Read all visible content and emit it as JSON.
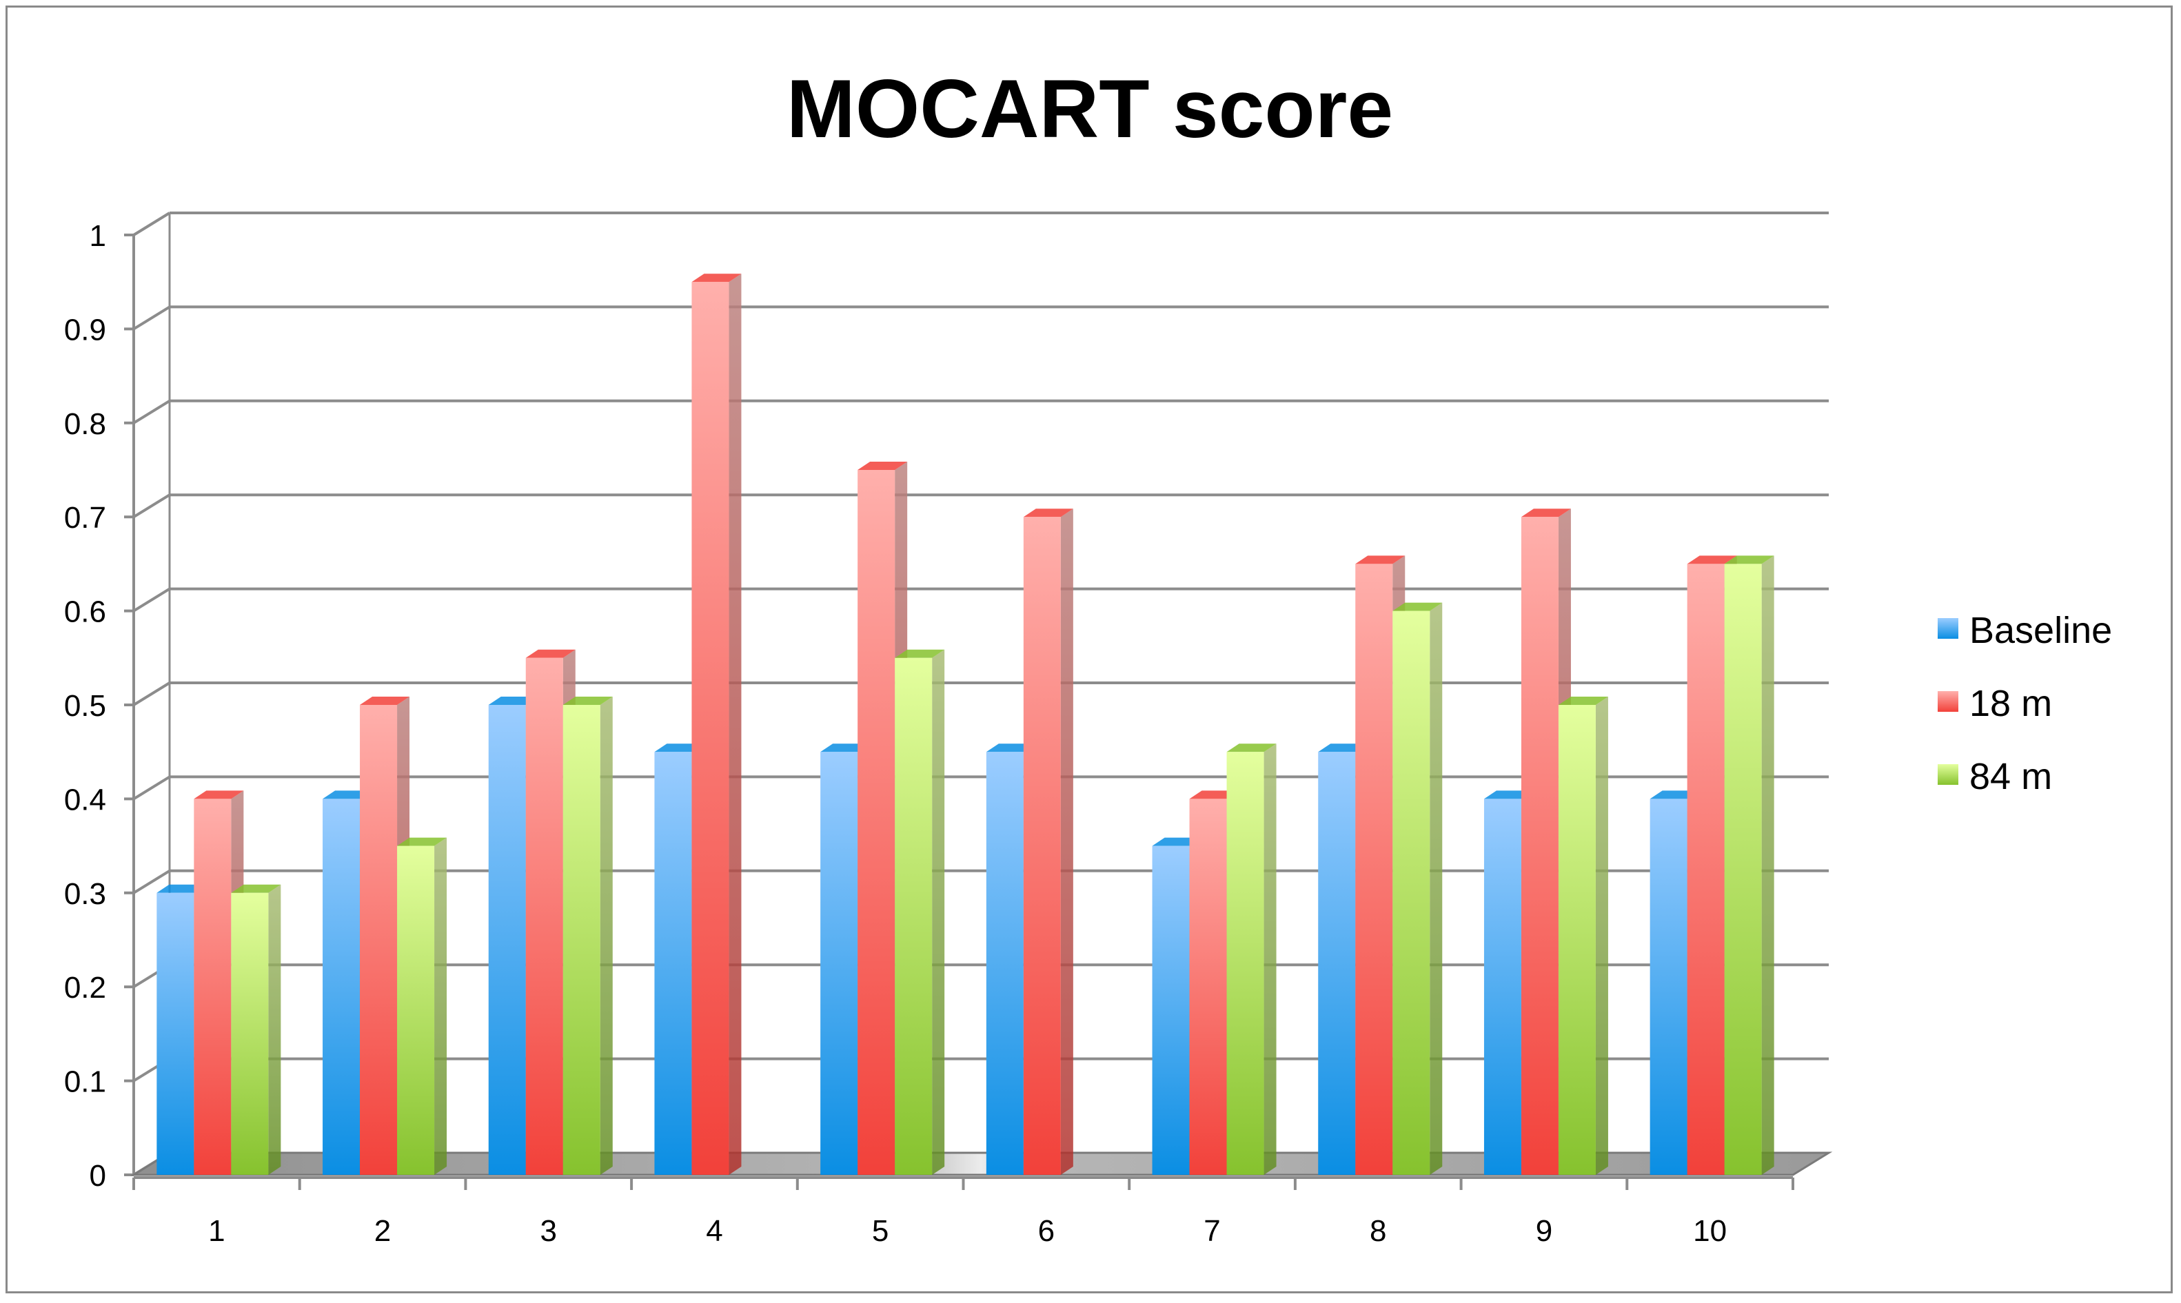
{
  "chart_data": {
    "type": "bar",
    "title": "MOCART score",
    "xlabel": "",
    "ylabel": "",
    "categories": [
      "1",
      "2",
      "3",
      "4",
      "5",
      "6",
      "7",
      "8",
      "9",
      "10"
    ],
    "series": [
      {
        "name": "Baseline",
        "values": [
          0.3,
          0.4,
          0.5,
          0.45,
          0.45,
          0.45,
          0.35,
          0.45,
          0.4,
          0.4
        ]
      },
      {
        "name": "18 m",
        "values": [
          0.4,
          0.5,
          0.55,
          0.95,
          0.75,
          0.7,
          0.4,
          0.65,
          0.7,
          0.65
        ]
      },
      {
        "name": "84 m",
        "values": [
          0.3,
          0.35,
          0.5,
          null,
          0.55,
          null,
          0.45,
          0.6,
          0.5,
          0.65
        ]
      }
    ],
    "ylim": [
      0,
      1
    ],
    "yticks": [
      "0",
      "0.1",
      "0.2",
      "0.3",
      "0.4",
      "0.5",
      "0.6",
      "0.7",
      "0.8",
      "0.9",
      "1"
    ],
    "grid": true,
    "legend_position": "right",
    "style": "3d-clustered-column",
    "colors": {
      "Baseline": [
        "#9ccdff",
        "#0a8ee3"
      ],
      "18 m": [
        "#ffb0ac",
        "#f2413a"
      ],
      "84 m": [
        "#e4ff9e",
        "#86c22e"
      ]
    }
  }
}
